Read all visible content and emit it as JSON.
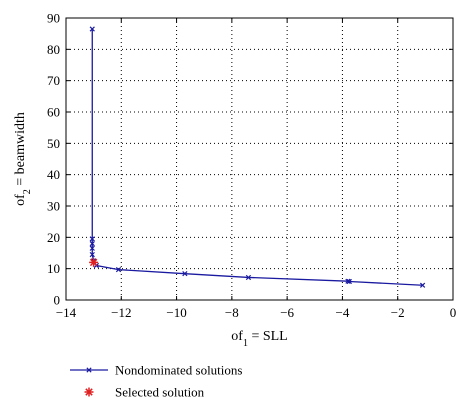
{
  "chart_data": {
    "type": "line",
    "xlabel": {
      "base": "of",
      "sub": "1",
      "rest": " = SLL"
    },
    "ylabel": {
      "base": "of",
      "sub": "2",
      "rest": " = beamwidth"
    },
    "xlim": [
      -14,
      0
    ],
    "ylim": [
      0,
      90
    ],
    "xticks": [
      -14,
      -12,
      -10,
      -8,
      -6,
      -4,
      -2,
      0
    ],
    "yticks": [
      0,
      10,
      20,
      30,
      40,
      50,
      60,
      70,
      80,
      90
    ],
    "grid": true,
    "grid_style": "dotted",
    "legend_position": "bottom-left, below plot",
    "series": [
      {
        "name": "Nondominated solutions",
        "color": "#1a1aa0",
        "marker": "x",
        "points": [
          [
            -13.05,
            86.5
          ],
          [
            -13.05,
            19.5
          ],
          [
            -13.05,
            18.0
          ],
          [
            -13.05,
            16.5
          ],
          [
            -13.05,
            14.5
          ],
          [
            -13.0,
            12.5
          ],
          [
            -12.9,
            11.0
          ],
          [
            -12.1,
            9.7
          ],
          [
            -9.7,
            8.4
          ],
          [
            -7.4,
            7.2
          ],
          [
            -3.8,
            6.0
          ],
          [
            -3.75,
            5.9
          ],
          [
            -1.1,
            4.7
          ]
        ]
      },
      {
        "name": "Selected solution",
        "color": "#e02020",
        "marker": "asterisk",
        "points": [
          [
            -13.0,
            12.0
          ]
        ]
      }
    ]
  }
}
